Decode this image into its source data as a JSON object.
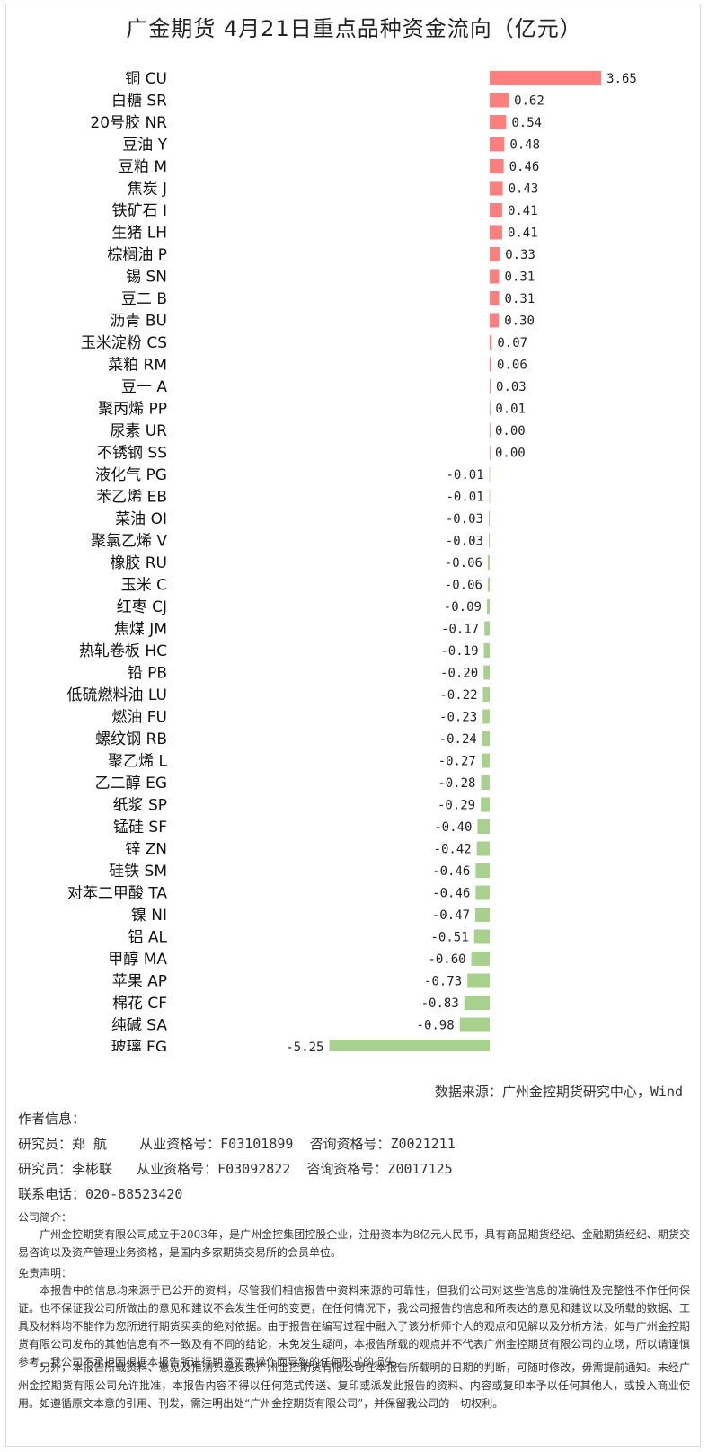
{
  "chart_data": {
    "type": "bar",
    "orientation": "horizontal",
    "title": "广金期货 4月21日重点品种资金流向（亿元）",
    "colors": {
      "positive": "#ff7f7f",
      "negative": "#a9d18e"
    },
    "categories": [
      "铜 CU",
      "白糖 SR",
      "20号胶 NR",
      "豆油 Y",
      "豆粕 M",
      "焦炭 J",
      "铁矿石 I",
      "生猪 LH",
      "棕榈油 P",
      "锡 SN",
      "豆二 B",
      "沥青 BU",
      "玉米淀粉 CS",
      "菜粕 RM",
      "豆一 A",
      "聚丙烯 PP",
      "尿素 UR",
      "不锈钢 SS",
      "液化气 PG",
      "苯乙烯 EB",
      "菜油 OI",
      "聚氯乙烯 V",
      "橡胶 RU",
      "玉米 C",
      "红枣 CJ",
      "焦煤 JM",
      "热轧卷板 HC",
      "铅 PB",
      "低硫燃料油 LU",
      "燃油 FU",
      "螺纹钢 RB",
      "聚乙烯 L",
      "乙二醇 EG",
      "纸浆 SP",
      "锰硅 SF",
      "锌 ZN",
      "硅铁 SM",
      "对苯二甲酸 TA",
      "镍 NI",
      "铝 AL",
      "甲醇 MA",
      "苹果 AP",
      "棉花 CF",
      "纯碱 SA",
      "玻璃 FG"
    ],
    "values": [
      3.65,
      0.62,
      0.54,
      0.48,
      0.46,
      0.43,
      0.41,
      0.41,
      0.33,
      0.31,
      0.31,
      0.3,
      0.07,
      0.06,
      0.03,
      0.01,
      0.0,
      0.0,
      -0.01,
      -0.01,
      -0.03,
      -0.03,
      -0.06,
      -0.06,
      -0.09,
      -0.17,
      -0.19,
      -0.2,
      -0.22,
      -0.23,
      -0.24,
      -0.27,
      -0.28,
      -0.29,
      -0.4,
      -0.42,
      -0.46,
      -0.46,
      -0.47,
      -0.51,
      -0.6,
      -0.73,
      -0.83,
      -0.98,
      -5.25
    ],
    "value_labels": [
      "3.65",
      "0.62",
      "0.54",
      "0.48",
      "0.46",
      "0.43",
      "0.41",
      "0.41",
      "0.33",
      "0.31",
      "0.31",
      "0.30",
      "0.07",
      "0.06",
      "0.03",
      "0.01",
      "0.00",
      "0.00",
      "-0.01",
      "-0.01",
      "-0.03",
      "-0.03",
      "-0.06",
      "-0.06",
      "-0.09",
      "-0.17",
      "-0.19",
      "-0.20",
      "-0.22",
      "-0.23",
      "-0.24",
      "-0.27",
      "-0.28",
      "-0.29",
      "-0.40",
      "-0.42",
      "-0.46",
      "-0.46",
      "-0.47",
      "-0.51",
      "-0.60",
      "-0.73",
      "-0.83",
      "-0.98",
      "-5.25"
    ],
    "xlim": [
      -5.25,
      3.65
    ],
    "grid": false,
    "legend": "none"
  },
  "source": "数据来源：广州金控期货研究中心，Wind",
  "author": {
    "heading": "作者信息：",
    "lines": [
      "研究员：郑 航    从业资格号：F03101899  咨询资格号：Z0021211",
      "研究员：李彬联   从业资格号：F03092822  咨询资格号：Z0017125"
    ],
    "phone": "联系电话：020-88523420"
  },
  "company": {
    "heading": "公司简介：",
    "text": "广州金控期货有限公司成立于2003年，是广州金控集团控股企业，注册资本为8亿元人民币，具有商品期货经纪、金融期货经纪、期货交易咨询以及资产管理业务资格，是国内多家期货交易所的会员单位。"
  },
  "disclaimer": {
    "heading": "免责声明：",
    "p1": "本报告中的信息均来源于已公开的资料，尽管我们相信报告中资料来源的可靠性，但我们公司对这些信息的准确性及完整性不作任何保证。也不保证我公司所做出的意见和建议不会发生任何的变更，在任何情况下，我公司报告的信息和所表达的意见和建议以及所载的数据、工具及材料均不能作为您所进行期货买卖的绝对依据。由于报告在编写过程中融入了该分析师个人的观点和见解以及分析方法，如与广州金控期货有限公司发布的其他信息有不一致及有不同的结论，未免发生疑问，本报告所载的观点并不代表广州金控期货有限公司的立场，所以请谨慎参考。我公司不承担因根据本报告所进行期货买卖操作而导致的任何形式的损失。",
    "p2": "另外，本报告所载资料、意见及推测只是反映广州金控期货有限公司在本报告所载明的日期的判断，可随时修改，毋需提前通知。未经广州金控期货有限公司允许批准，本报告内容不得以任何范式传送、复印或派发此报告的资料、内容或复印本予以任何其他人，或投入商业使用。如遵循原文本意的引用、刊发，需注明出处“广州金控期货有限公司”，并保留我公司的一切权利。"
  }
}
